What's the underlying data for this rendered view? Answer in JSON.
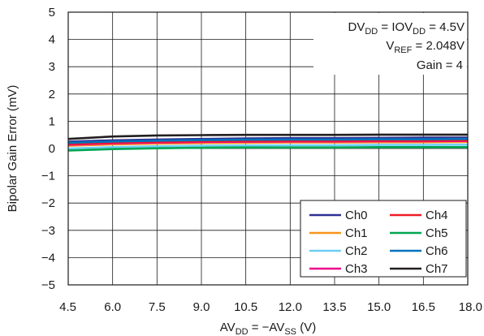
{
  "chart_data": {
    "type": "line",
    "xlabel": {
      "main": "AV",
      "sub1": "DD",
      "mid": " = −AV",
      "sub2": "SS",
      "tail": " (V)"
    },
    "ylabel": "Bipolar Gain Error (mV)",
    "xlim": [
      4.5,
      18.0
    ],
    "ylim": [
      -5,
      5
    ],
    "x_ticks": [
      "4.5",
      "6.0",
      "7.5",
      "9.0",
      "10.5",
      "12.0",
      "13.5",
      "15.0",
      "16.5",
      "18.0"
    ],
    "y_ticks": [
      "5",
      "4",
      "3",
      "2",
      "1",
      "0",
      "−1",
      "−2",
      "−3",
      "−4",
      "−5"
    ],
    "grid": true,
    "annotation": {
      "line1": {
        "a": "DV",
        "a_sub": "DD",
        "b": " = IOV",
        "b_sub": "DD",
        "c": " = 4.5V"
      },
      "line2": {
        "a": "V",
        "a_sub": "REF",
        "b": " = 2.048V"
      },
      "line3": "Gain = 4"
    },
    "legend_position": "bottom-right",
    "x": [
      4.5,
      6.0,
      7.5,
      9.0,
      10.5,
      12.0,
      13.5,
      15.0,
      16.5,
      18.0
    ],
    "series": [
      {
        "name": "Ch0",
        "color": "#2e3192",
        "values": [
          0.25,
          0.3,
          0.33,
          0.35,
          0.37,
          0.38,
          0.38,
          0.39,
          0.4,
          0.4
        ]
      },
      {
        "name": "Ch1",
        "color": "#f7941d",
        "values": [
          0.1,
          0.15,
          0.18,
          0.2,
          0.21,
          0.22,
          0.22,
          0.23,
          0.23,
          0.24
        ]
      },
      {
        "name": "Ch2",
        "color": "#6dcff6",
        "values": [
          0.0,
          0.05,
          0.08,
          0.1,
          0.11,
          0.12,
          0.12,
          0.13,
          0.13,
          0.14
        ]
      },
      {
        "name": "Ch3",
        "color": "#ec008c",
        "values": [
          0.14,
          0.19,
          0.22,
          0.24,
          0.25,
          0.26,
          0.26,
          0.27,
          0.27,
          0.28
        ]
      },
      {
        "name": "Ch4",
        "color": "#ed1c24",
        "values": [
          0.17,
          0.22,
          0.25,
          0.27,
          0.28,
          0.29,
          0.29,
          0.3,
          0.3,
          0.31
        ]
      },
      {
        "name": "Ch5",
        "color": "#00a651",
        "values": [
          -0.07,
          -0.02,
          0.01,
          0.03,
          0.04,
          0.04,
          0.04,
          0.05,
          0.05,
          0.05
        ]
      },
      {
        "name": "Ch6",
        "color": "#0072bc",
        "values": [
          0.21,
          0.26,
          0.29,
          0.31,
          0.32,
          0.33,
          0.33,
          0.34,
          0.34,
          0.35
        ]
      },
      {
        "name": "Ch7",
        "color": "#231f20",
        "values": [
          0.35,
          0.44,
          0.48,
          0.49,
          0.5,
          0.5,
          0.5,
          0.51,
          0.51,
          0.51
        ]
      }
    ]
  }
}
